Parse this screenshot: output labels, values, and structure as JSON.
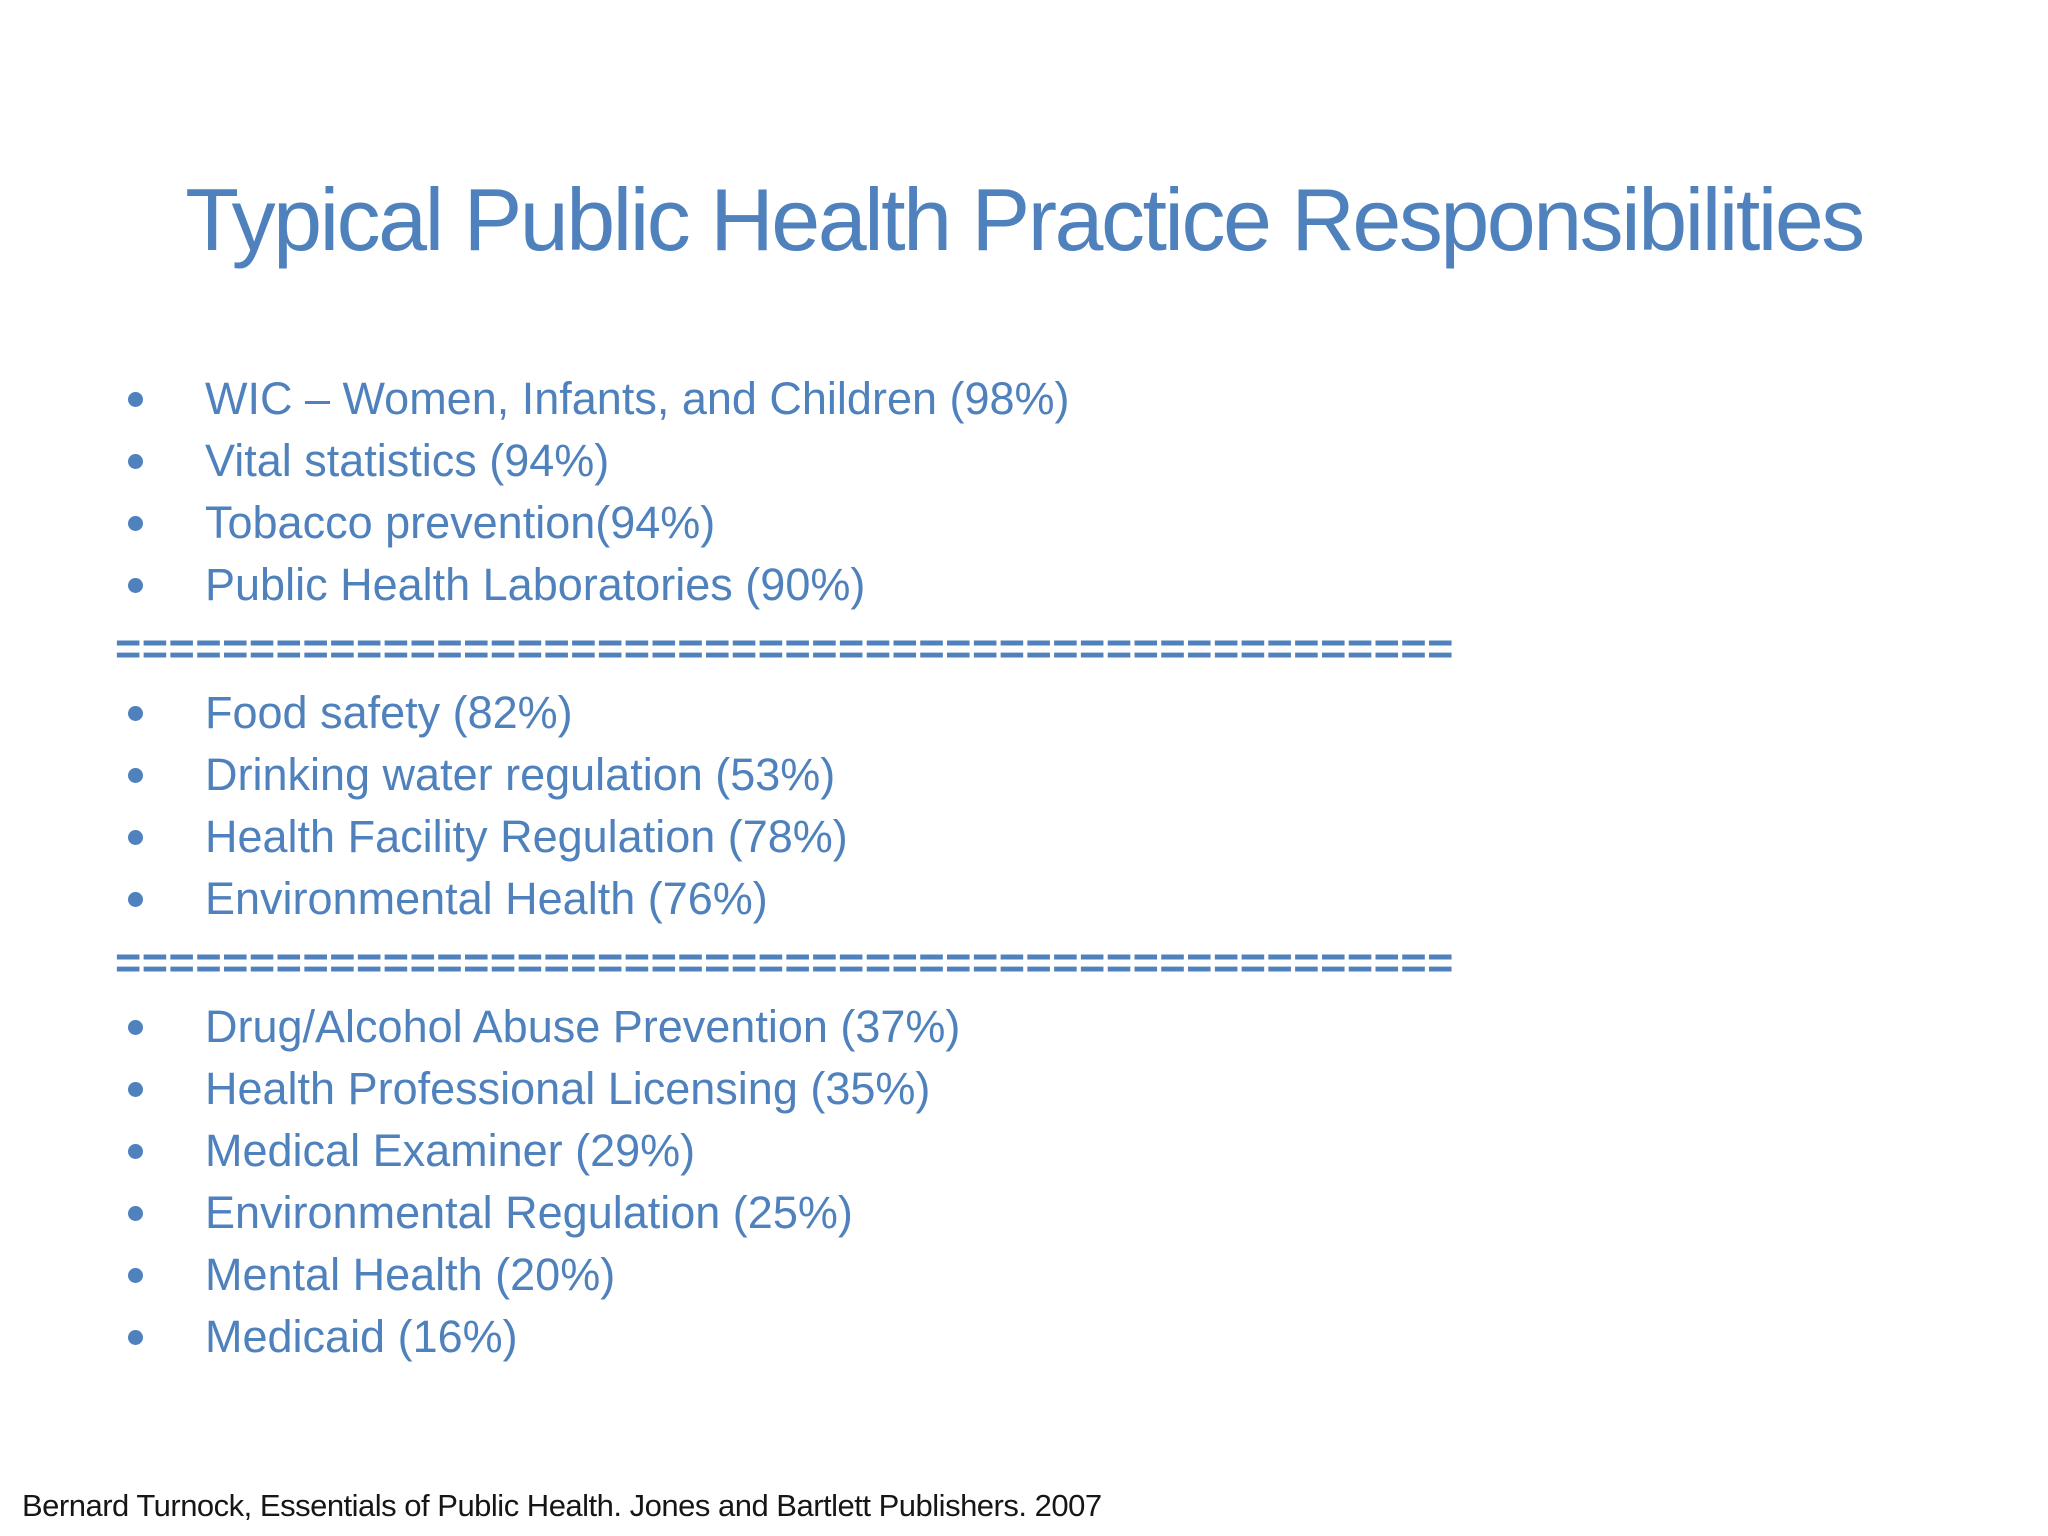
{
  "slide": {
    "title": "Typical Public Health Practice Responsibilities",
    "separator": "==================================================",
    "groups": [
      {
        "items": [
          "WIC – Women, Infants, and Children (98%)",
          "Vital statistics (94%)",
          "Tobacco prevention(94%)",
          "Public Health Laboratories (90%)"
        ]
      },
      {
        "items": [
          "Food safety (82%)",
          "Drinking water regulation (53%)",
          "Health Facility Regulation (78%)",
          "Environmental Health (76%)"
        ]
      },
      {
        "items": [
          "Drug/Alcohol Abuse Prevention (37%)",
          "Health Professional Licensing (35%)",
          "Medical Examiner (29%)",
          "Environmental Regulation (25%)",
          "Mental Health (20%)",
          "Medicaid (16%)"
        ]
      }
    ],
    "footer": "Bernard Turnock, Essentials of Public Health. Jones and Bartlett Publishers. 2007",
    "colors": {
      "accent": "#4f81bd",
      "footer_text": "#161616",
      "background": "#ffffff"
    }
  }
}
